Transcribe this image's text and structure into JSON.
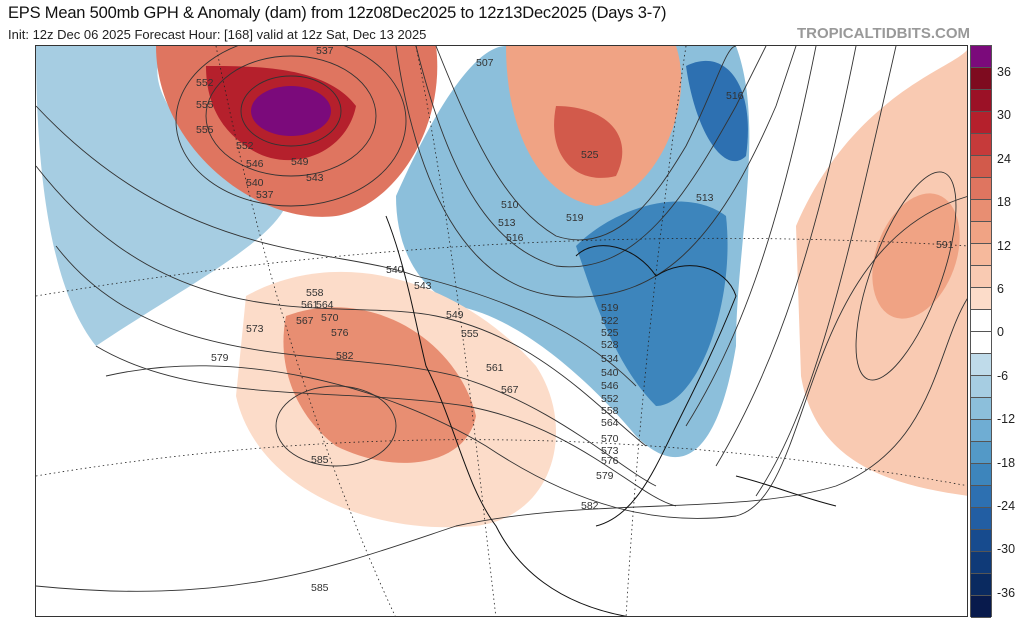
{
  "header": {
    "title": "EPS Mean 500mb GPH & Anomaly (dam) from 12z08Dec2025 to 12z13Dec2025 (Days 3-7)",
    "subtitle": "Init: 12z Dec 06 2025   Forecast Hour: [168]   valid at 12z Sat, Dec 13 2025",
    "brand": "TROPICALTIDBITS.COM"
  },
  "colorbar": {
    "labels": [
      "36",
      "30",
      "24",
      "18",
      "12",
      "6",
      "0",
      "-6",
      "-12",
      "-18",
      "-24",
      "-30",
      "-36"
    ],
    "colors": [
      "#7b0a7b",
      "#7e0b1f",
      "#9b1126",
      "#b5202c",
      "#c63a3a",
      "#d25a4b",
      "#df7560",
      "#e88e72",
      "#f0a384",
      "#f6b99c",
      "#f9cab2",
      "#fcdcc9",
      "#ffffff",
      "#ffffff",
      "#bfdbea",
      "#a6cde2",
      "#8cbfdb",
      "#6fadd3",
      "#5399c7",
      "#3d85bc",
      "#2d70b1",
      "#225ea3",
      "#174b8e",
      "#0f3a78",
      "#0a2a60",
      "#081a4c"
    ]
  },
  "contour_labels": [
    "537",
    "552",
    "555",
    "555",
    "552",
    "546",
    "549",
    "543",
    "540",
    "537",
    "507",
    "516",
    "525",
    "519",
    "510",
    "513",
    "516",
    "513",
    "591",
    "540",
    "543",
    "549",
    "555",
    "558",
    "561",
    "564",
    "567",
    "570",
    "573",
    "576",
    "579",
    "582",
    "585",
    "585",
    "561",
    "567",
    "519",
    "522",
    "525",
    "528",
    "534",
    "540",
    "546",
    "552",
    "558",
    "564",
    "570",
    "573",
    "576",
    "579",
    "582"
  ]
}
